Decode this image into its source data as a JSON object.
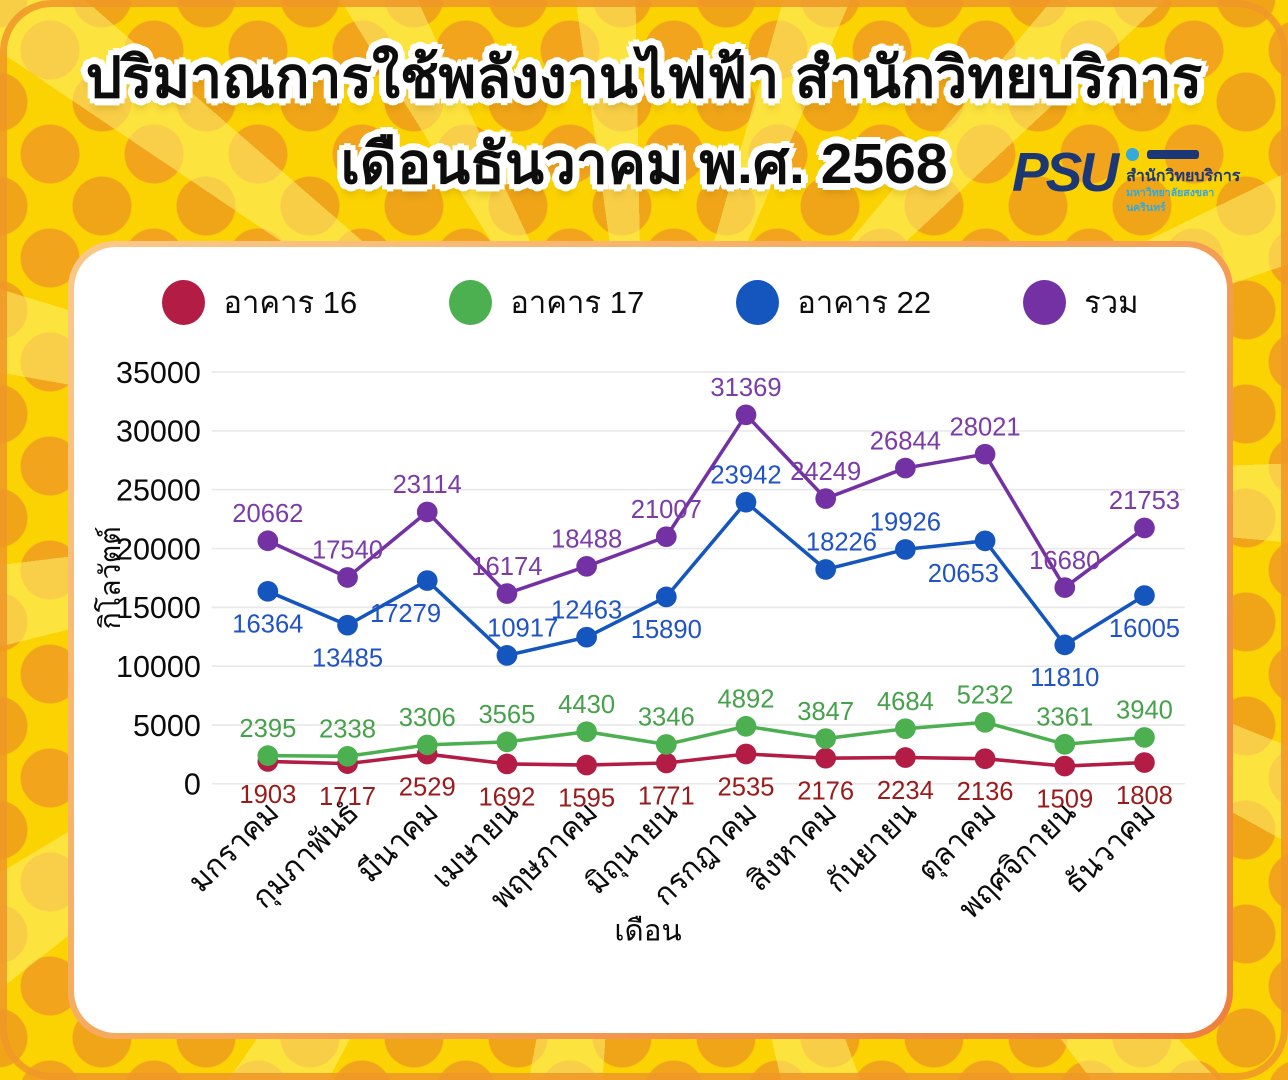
{
  "title": {
    "line1": "ปริมาณการใช้พลังงานไฟฟ้า สำนักวิทยบริการ",
    "line2": "เดือนธันวาคม พ.ศ. 2568"
  },
  "logo": {
    "acronym": "PSU",
    "org_line1": "สำนักวิทยบริการ",
    "org_line2": "มหาวิทยาลัยสงขลานครินทร์"
  },
  "colors": {
    "background_yellow": "#FBD303",
    "dot_orange": "#F2A51C",
    "card_border_orange": "#EE7F3F",
    "building16_red": "#B31C44",
    "building17_green": "#4CAF50",
    "building22_blue": "#1455BE",
    "total_purple": "#7431A3",
    "logo_navy": "#1C3775",
    "logo_light_blue": "#35A8DC"
  },
  "chart_data": {
    "type": "line",
    "title": "ปริมาณการใช้พลังงานไฟฟ้า สำนักวิทยบริการ เดือนธันวาคม พ.ศ. 2568",
    "xlabel": "เดือน",
    "ylabel": "กิโลวัตต์",
    "ylim": [
      0,
      35000
    ],
    "yticks": [
      0,
      5000,
      10000,
      15000,
      20000,
      25000,
      30000,
      35000
    ],
    "grid": true,
    "legend_position": "top",
    "categories": [
      "มกราคม",
      "กุมภาพันธ์",
      "มีนาคม",
      "เมษายน",
      "พฤษภาคม",
      "มิถุนายน",
      "กรกฎาคม",
      "สิงหาคม",
      "กันยายน",
      "ตุลาคม",
      "พฤศจิกายน",
      "ธันวาคม"
    ],
    "series": [
      {
        "name": "อาคาร 16",
        "color": "#B31C44",
        "label_color": "#9A1B1B",
        "values": [
          1903,
          1717,
          2529,
          1692,
          1595,
          1771,
          2535,
          2176,
          2234,
          2136,
          1509,
          1808
        ]
      },
      {
        "name": "อาคาร 17",
        "color": "#4CAF50",
        "label_color": "#46A14B",
        "values": [
          2395,
          2338,
          3306,
          3565,
          4430,
          3346,
          4892,
          3847,
          4684,
          5232,
          3361,
          3940
        ]
      },
      {
        "name": "อาคาร 22",
        "color": "#1455BE",
        "label_color": "#2053C5",
        "values": [
          16364,
          13485,
          17279,
          10917,
          12463,
          15890,
          23942,
          18226,
          19926,
          20653,
          11810,
          16005
        ]
      },
      {
        "name": "รวม",
        "color": "#7431A3",
        "label_color": "#7B3BA8",
        "values": [
          20662,
          17540,
          23114,
          16174,
          18488,
          21007,
          31369,
          24249,
          26844,
          28021,
          16680,
          21753
        ]
      }
    ]
  }
}
